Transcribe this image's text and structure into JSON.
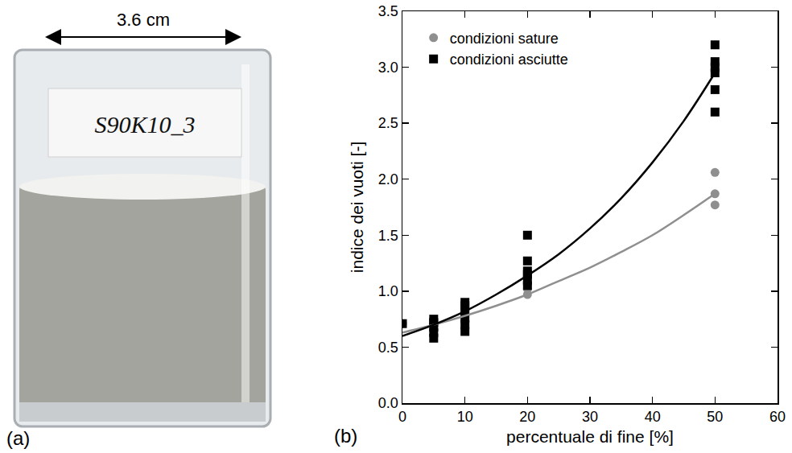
{
  "photo": {
    "panel_label": "(a)",
    "dimension": "3.6 cm",
    "sample_tag": "S90K10_3"
  },
  "chart_data": {
    "type": "scatter",
    "panel_label": "(b)",
    "x_label": "percentuale di fine [%]",
    "y_label": "indice dei vuoti [-]",
    "xlim": [
      0,
      60
    ],
    "xticks": [
      0,
      10,
      20,
      30,
      40,
      50,
      60
    ],
    "ylim": [
      0,
      3.5
    ],
    "yticks": [
      {
        "value": 0,
        "label": "0.0"
      },
      0.5,
      {
        "value": 1,
        "label": "1.0"
      },
      1.5,
      {
        "value": 2,
        "label": "2.0"
      },
      2.5,
      {
        "value": 3,
        "label": "3.0"
      },
      3.5
    ],
    "grid": false,
    "legend": "upper left",
    "series": [
      {
        "name": "condizioni sature",
        "type": "scatter",
        "marker": "circle",
        "color": "#8f8f8f",
        "x": [
          0,
          5,
          5,
          5,
          10,
          10,
          10,
          20,
          20,
          20,
          50,
          50,
          50
        ],
        "values": [
          0.71,
          0.65,
          0.7,
          0.74,
          0.73,
          0.78,
          0.82,
          0.97,
          1.02,
          1.06,
          1.77,
          1.87,
          2.06
        ]
      },
      {
        "name": "condizioni asciutte",
        "type": "scatter",
        "marker": "square",
        "color": "#000000",
        "x": [
          0,
          5,
          5,
          5,
          5,
          5,
          10,
          10,
          10,
          10,
          10,
          10,
          20,
          20,
          20,
          20,
          20,
          20,
          50,
          50,
          50,
          50,
          50,
          50
        ],
        "values": [
          0.71,
          0.58,
          0.63,
          0.68,
          0.72,
          0.75,
          0.64,
          0.7,
          0.76,
          0.82,
          0.87,
          0.9,
          1.05,
          1.1,
          1.15,
          1.18,
          1.27,
          1.5,
          2.6,
          2.8,
          2.95,
          3.0,
          3.05,
          3.2
        ]
      },
      {
        "type": "line",
        "line_style": "solid",
        "color": "#8f8f8f",
        "x": [
          0,
          5,
          10,
          15,
          20,
          25,
          30,
          35,
          40,
          45,
          50
        ],
        "values": [
          0.63,
          0.7,
          0.78,
          0.87,
          0.97,
          1.09,
          1.21,
          1.35,
          1.5,
          1.68,
          1.87
        ]
      },
      {
        "type": "line",
        "line_style": "solid",
        "color": "#000000",
        "x": [
          0,
          5,
          10,
          15,
          20,
          25,
          30,
          35,
          40,
          45,
          50
        ],
        "values": [
          0.6,
          0.7,
          0.82,
          0.97,
          1.14,
          1.33,
          1.56,
          1.83,
          2.15,
          2.52,
          2.95
        ]
      }
    ]
  }
}
